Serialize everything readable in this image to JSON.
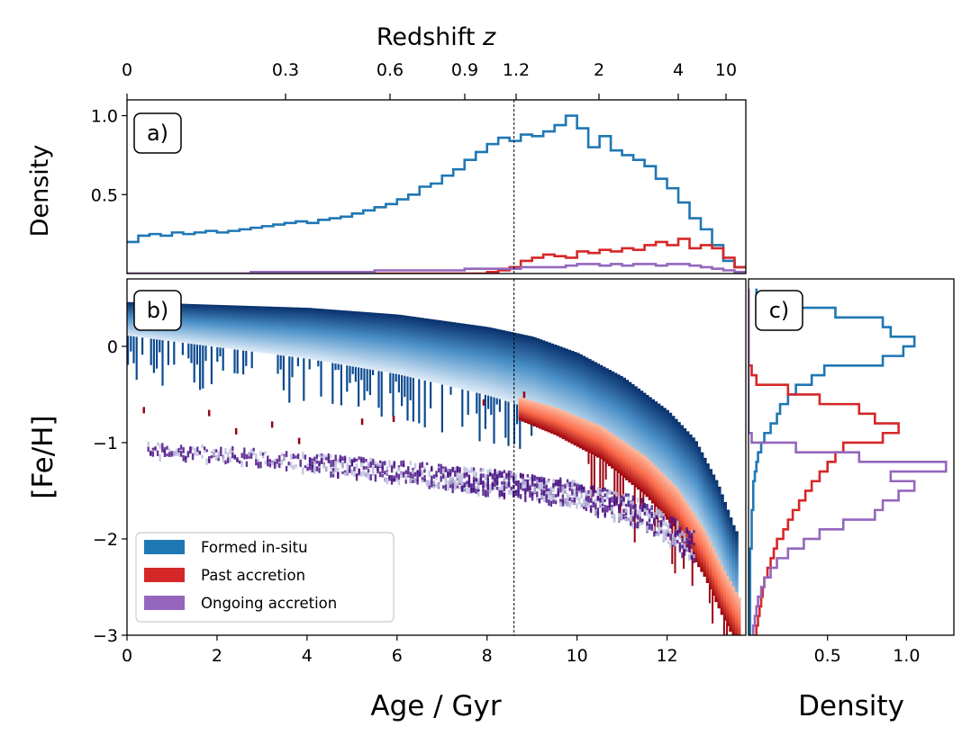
{
  "figure": {
    "top_axis_title": "Redshift z",
    "top_axis_ticks": [
      "0",
      "0.3",
      "0.6",
      "0.9",
      "1.2",
      "2",
      "4",
      "10"
    ],
    "age_reference_line_gyr": 8.6
  },
  "colors": {
    "in_situ": "#1f77b4",
    "past_accretion": "#d62728",
    "ongoing_accretion": "#9467bd",
    "reference_line": "#000000"
  },
  "chart_data": [
    {
      "id": "a",
      "panel_label": "a)",
      "type": "line",
      "step": true,
      "xlabel": "",
      "ylabel": "Density",
      "xlim": [
        0,
        13.75
      ],
      "ylim": [
        0.0,
        1.1
      ],
      "yticks": [
        "0.5",
        "1.0"
      ],
      "x": [
        0.0,
        0.25,
        0.5,
        0.75,
        1.0,
        1.25,
        1.5,
        1.75,
        2.0,
        2.25,
        2.5,
        2.75,
        3.0,
        3.25,
        3.5,
        3.75,
        4.0,
        4.25,
        4.5,
        4.75,
        5.0,
        5.25,
        5.5,
        5.75,
        6.0,
        6.25,
        6.5,
        6.75,
        7.0,
        7.25,
        7.5,
        7.75,
        8.0,
        8.25,
        8.5,
        8.75,
        9.0,
        9.25,
        9.5,
        9.75,
        10.0,
        10.25,
        10.5,
        10.75,
        11.0,
        11.25,
        11.5,
        11.75,
        12.0,
        12.25,
        12.5,
        12.75,
        13.0,
        13.25,
        13.5
      ],
      "series": [
        {
          "name": "Formed in-situ",
          "color_key": "in_situ",
          "values": [
            0.2,
            0.24,
            0.25,
            0.24,
            0.26,
            0.25,
            0.26,
            0.27,
            0.26,
            0.27,
            0.28,
            0.29,
            0.3,
            0.31,
            0.32,
            0.33,
            0.32,
            0.34,
            0.35,
            0.36,
            0.38,
            0.4,
            0.42,
            0.44,
            0.47,
            0.5,
            0.55,
            0.57,
            0.62,
            0.66,
            0.72,
            0.77,
            0.82,
            0.86,
            0.84,
            0.88,
            0.87,
            0.9,
            0.94,
            1.0,
            0.92,
            0.8,
            0.87,
            0.78,
            0.75,
            0.72,
            0.68,
            0.6,
            0.54,
            0.45,
            0.35,
            0.28,
            0.18,
            0.08,
            0.04
          ]
        },
        {
          "name": "Past accretion",
          "color_key": "past_accretion",
          "values": [
            0,
            0,
            0,
            0,
            0,
            0,
            0,
            0,
            0,
            0,
            0,
            0,
            0,
            0,
            0,
            0,
            0,
            0,
            0,
            0,
            0,
            0,
            0,
            0,
            0,
            0,
            0,
            0,
            0,
            0,
            0,
            0,
            0.01,
            0.02,
            0.04,
            0.08,
            0.1,
            0.12,
            0.11,
            0.1,
            0.14,
            0.13,
            0.15,
            0.14,
            0.16,
            0.15,
            0.18,
            0.2,
            0.18,
            0.22,
            0.16,
            0.18,
            0.16,
            0.1,
            0.04
          ]
        },
        {
          "name": "Ongoing accretion",
          "color_key": "ongoing_accretion",
          "values": [
            0,
            0,
            0,
            0,
            0,
            0,
            0,
            0,
            0,
            0,
            0,
            0.01,
            0.01,
            0.01,
            0.01,
            0.01,
            0.01,
            0.01,
            0.01,
            0.01,
            0.01,
            0.01,
            0.02,
            0.02,
            0.02,
            0.02,
            0.02,
            0.02,
            0.02,
            0.02,
            0.03,
            0.03,
            0.03,
            0.03,
            0.03,
            0.04,
            0.04,
            0.04,
            0.04,
            0.05,
            0.06,
            0.06,
            0.05,
            0.06,
            0.05,
            0.06,
            0.06,
            0.05,
            0.06,
            0.06,
            0.05,
            0.04,
            0.03,
            0.02,
            0.01
          ]
        }
      ]
    },
    {
      "id": "b",
      "panel_label": "b)",
      "type": "heatmap",
      "xlabel": "Age / Gyr",
      "ylabel": "[Fe/H]",
      "xlim": [
        0,
        13.75
      ],
      "ylim": [
        -3.0,
        0.7
      ],
      "xticks": [
        "0",
        "2",
        "4",
        "6",
        "8",
        "10",
        "12"
      ],
      "yticks": [
        "−3",
        "−2",
        "−1",
        "0"
      ],
      "legend": {
        "location": "lower-left",
        "entries": [
          {
            "label": "Formed in-situ",
            "color_key": "in_situ"
          },
          {
            "label": "Past accretion",
            "color_key": "past_accretion"
          },
          {
            "label": "Ongoing accretion",
            "color_key": "ongoing_accretion"
          }
        ]
      },
      "ridges": [
        {
          "name": "Formed in-situ",
          "color_key": "in_situ",
          "age": [
            0.0,
            2.0,
            4.0,
            6.0,
            8.0,
            9.0,
            10.0,
            11.0,
            12.0,
            12.6,
            13.1,
            13.5
          ],
          "feh": [
            0.38,
            0.35,
            0.32,
            0.25,
            0.12,
            0.02,
            -0.15,
            -0.4,
            -0.75,
            -1.05,
            -1.5,
            -2.0
          ]
        },
        {
          "name": "Past accretion",
          "color_key": "past_accretion",
          "age": [
            8.7,
            9.5,
            10.5,
            11.5,
            12.2,
            12.8,
            13.2,
            13.6
          ],
          "feh": [
            -0.65,
            -0.78,
            -1.0,
            -1.35,
            -1.7,
            -2.15,
            -2.55,
            -2.9
          ]
        },
        {
          "name": "Ongoing accretion",
          "color_key": "ongoing_accretion",
          "age": [
            0.5,
            2.0,
            4.0,
            6.0,
            8.0,
            10.0,
            11.5,
            12.5
          ],
          "feh": [
            -1.05,
            -1.1,
            -1.18,
            -1.28,
            -1.38,
            -1.52,
            -1.72,
            -2.05
          ]
        }
      ]
    },
    {
      "id": "c",
      "panel_label": "c)",
      "type": "line",
      "step": true,
      "orientation": "horizontal",
      "xlabel": "Density",
      "ylabel": "",
      "xlim": [
        0.0,
        1.3
      ],
      "ylim": [
        -3.0,
        0.7
      ],
      "xticks": [
        "0.5",
        "1.0"
      ],
      "feh_bins": [
        0.55,
        0.45,
        0.35,
        0.25,
        0.15,
        0.05,
        -0.05,
        -0.15,
        -0.25,
        -0.35,
        -0.45,
        -0.55,
        -0.65,
        -0.75,
        -0.85,
        -0.95,
        -1.05,
        -1.15,
        -1.25,
        -1.35,
        -1.45,
        -1.55,
        -1.65,
        -1.75,
        -1.85,
        -1.95,
        -2.05,
        -2.15,
        -2.25,
        -2.35,
        -2.45,
        -2.55,
        -2.65,
        -2.75,
        -2.85,
        -2.95
      ],
      "series": [
        {
          "name": "Formed in-situ",
          "color_key": "in_situ",
          "values": [
            0.05,
            0.22,
            0.55,
            0.85,
            0.9,
            1.05,
            0.98,
            0.85,
            0.48,
            0.4,
            0.3,
            0.25,
            0.2,
            0.18,
            0.14,
            0.1,
            0.08,
            0.06,
            0.05,
            0.04,
            0.03,
            0.03,
            0.03,
            0.02,
            0.02,
            0.02,
            0.02,
            0.01,
            0.01,
            0.01,
            0.01,
            0.01,
            0.01,
            0.01,
            0.01,
            0.01
          ]
        },
        {
          "name": "Past accretion",
          "color_key": "past_accretion",
          "values": [
            0,
            0,
            0,
            0,
            0,
            0,
            0,
            0,
            0.02,
            0.05,
            0.25,
            0.45,
            0.7,
            0.8,
            0.95,
            0.85,
            0.6,
            0.55,
            0.5,
            0.45,
            0.4,
            0.36,
            0.32,
            0.28,
            0.25,
            0.22,
            0.18,
            0.16,
            0.14,
            0.12,
            0.1,
            0.09,
            0.08,
            0.07,
            0.06,
            0.05
          ]
        },
        {
          "name": "Ongoing accretion",
          "color_key": "ongoing_accretion",
          "values": [
            0,
            0,
            0,
            0,
            0,
            0,
            0,
            0,
            0,
            0,
            0,
            0,
            0,
            0,
            0,
            0.02,
            0.3,
            0.7,
            1.25,
            0.9,
            1.05,
            0.95,
            0.85,
            0.8,
            0.6,
            0.45,
            0.35,
            0.25,
            0.18,
            0.14,
            0.1,
            0.08,
            0.06,
            0.05,
            0.04,
            0.03
          ]
        }
      ]
    }
  ]
}
